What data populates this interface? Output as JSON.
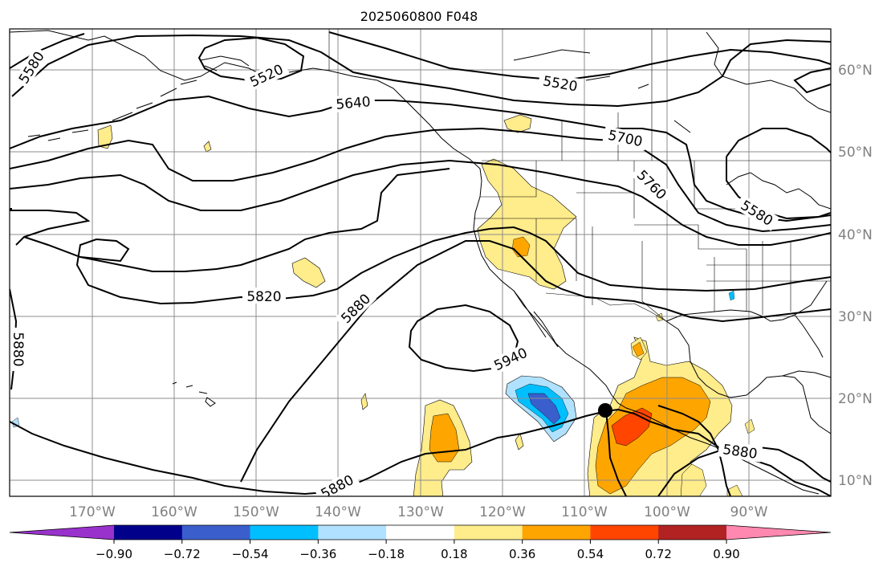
{
  "title": "2025060800 F048",
  "colors": {
    "background": "#ffffff",
    "grid": "#8c8c8c",
    "coast": "#000000",
    "contour": "#000000",
    "axis_label": "#808080",
    "colorbar_tick_label": "#000000"
  },
  "map": {
    "lon_labels": [
      "170°W",
      "160°W",
      "150°W",
      "140°W",
      "130°W",
      "120°W",
      "110°W",
      "100°W",
      "90°W"
    ],
    "lat_labels": [
      "60°N",
      "50°N",
      "40°N",
      "30°N",
      "20°N",
      "10°N"
    ],
    "contour_labels": [
      {
        "id": "c5580-nw",
        "text": "5580"
      },
      {
        "id": "c5520-ak",
        "text": "5520"
      },
      {
        "id": "c5520-can",
        "text": "5520"
      },
      {
        "id": "c5640",
        "text": "5640"
      },
      {
        "id": "c5700",
        "text": "5700"
      },
      {
        "id": "c5760",
        "text": "5760"
      },
      {
        "id": "c5580-ne",
        "text": "5580"
      },
      {
        "id": "c5820",
        "text": "5820"
      },
      {
        "id": "c5880-mid",
        "text": "5880"
      },
      {
        "id": "c5880-left",
        "text": "5880"
      },
      {
        "id": "c5940",
        "text": "5940"
      },
      {
        "id": "c5880-bottom",
        "text": "5880"
      },
      {
        "id": "c5880-se",
        "text": "5880"
      }
    ],
    "marker": "storm-center-dot"
  },
  "colorbar": {
    "ticks": [
      "−0.90",
      "−0.72",
      "−0.54",
      "−0.36",
      "−0.18",
      "0.18",
      "0.36",
      "0.54",
      "0.72",
      "0.90"
    ],
    "colors": {
      "under": "#9932cc",
      "bins": [
        "#00008b",
        "#3a5fcd",
        "#00bfff",
        "#b0e2ff",
        "#ffffff",
        "#ffec8b",
        "#ffa500",
        "#ff4500",
        "#b22222"
      ],
      "over": "#ff88b0"
    }
  }
}
